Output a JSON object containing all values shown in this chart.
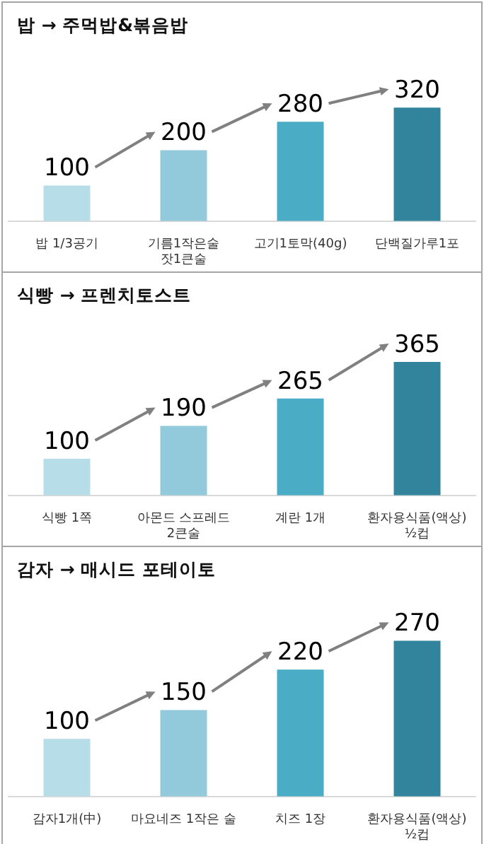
{
  "chart_data": [
    {
      "type": "bar",
      "title": "밥 → 주먹밥&볶음밥",
      "categories": [
        "밥 1/3공기",
        "기름1작은술\n잣1큰술",
        "고기1토막(40g)",
        "단백질가루1포"
      ],
      "values": [
        100,
        200,
        280,
        320
      ],
      "colors": [
        "#b7dde8",
        "#92cadc",
        "#4bacc6",
        "#31849b"
      ],
      "data_labels": true,
      "tick_labels": "x"
    },
    {
      "type": "bar",
      "title": "식빵 → 프렌치토스트",
      "categories": [
        "식빵 1쪽",
        "아몬드 스프레드\n2큰술",
        "계란 1개",
        "환자용식품(액상)\n½컵"
      ],
      "values": [
        100,
        190,
        265,
        365
      ],
      "colors": [
        "#b7dde8",
        "#92cadc",
        "#4bacc6",
        "#31849b"
      ],
      "data_labels": true,
      "tick_labels": "x"
    },
    {
      "type": "bar",
      "title": "감자 → 매시드 포테이토",
      "categories": [
        "감자1개(中)",
        "마요네즈 1작은 술",
        "치즈 1장",
        "환자용식품(액상)\n½컵"
      ],
      "values": [
        100,
        150,
        220,
        270
      ],
      "colors": [
        "#b7dde8",
        "#92cadc",
        "#4bacc6",
        "#31849b"
      ],
      "data_labels": true,
      "tick_labels": "x"
    }
  ]
}
